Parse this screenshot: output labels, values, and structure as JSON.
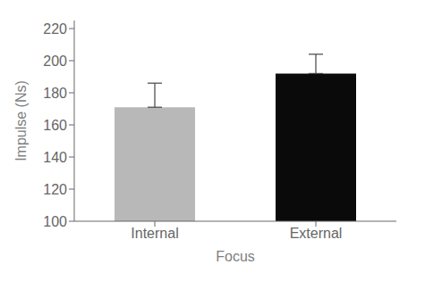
{
  "chart_data": {
    "type": "bar",
    "xlabel": "Focus",
    "ylabel": "Impulse (Ns)",
    "categories": [
      "Internal",
      "External"
    ],
    "values": [
      171,
      192
    ],
    "errors_up": [
      15,
      12
    ],
    "colors": [
      "#b8b8b8",
      "#0a0a0a"
    ],
    "ylim": [
      100,
      225
    ],
    "yticks": [
      100,
      120,
      140,
      160,
      180,
      200,
      220
    ],
    "grid": false
  }
}
